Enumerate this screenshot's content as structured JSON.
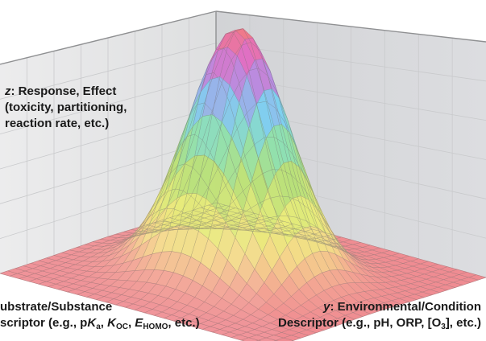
{
  "labels": {
    "z_axis": {
      "var": "z",
      "title": ": Response, Effect",
      "line2": "(toxicity, partitioning,",
      "line3": "reaction rate, etc.)"
    },
    "x_axis": {
      "line1": "ubstrate/Substance",
      "line2_a": "scriptor (e.g., p",
      "line2_K": "K",
      "line2_Ksub": "a",
      "line2_b": ", ",
      "line2_Koc": "K",
      "line2_Kocsub": "OC",
      "line2_c": ", ",
      "line2_E": "E",
      "line2_Esub": "HOMO",
      "line2_d": ", etc.)"
    },
    "y_axis": {
      "var": "y",
      "title": ": Environmental/Condition",
      "line2_a": "Descriptor (e.g., pH, ORP, [O",
      "line2_sub": "3",
      "line2_b": "], etc.)"
    }
  },
  "colors": {
    "back_wall_left": "#e6e6e7",
    "back_wall_right": "#d6d7d9",
    "floor": "#f1f1f2",
    "wall_edge": "#8e8e90",
    "grid": "#9aa0a6",
    "mesh": "#7a7a7a"
  }
}
